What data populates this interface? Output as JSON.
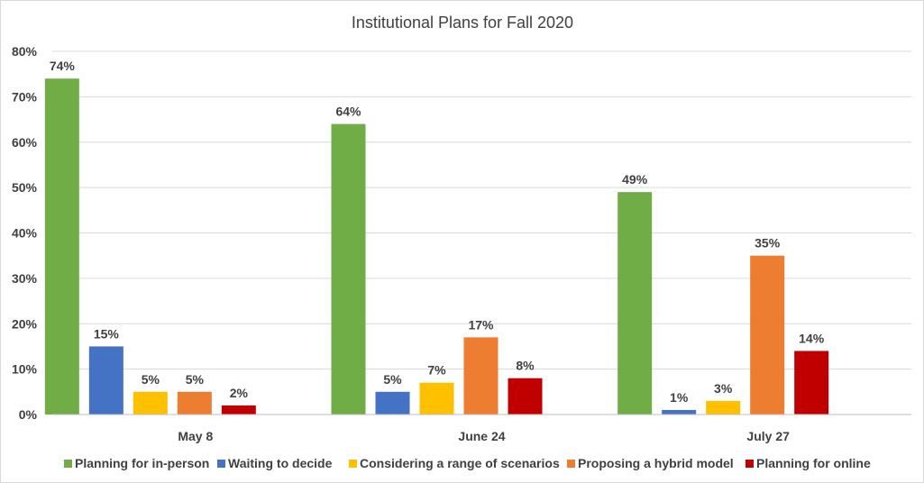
{
  "chart_data": {
    "type": "bar",
    "title": "Institutional Plans for Fall 2020",
    "categories": [
      "May 8",
      "June 24",
      "July 27"
    ],
    "series": [
      {
        "name": "Planning for in-person",
        "color": "#70AD47",
        "values": [
          74,
          64,
          49
        ]
      },
      {
        "name": "Waiting to decide",
        "color": "#4472C4",
        "values": [
          15,
          5,
          1
        ]
      },
      {
        "name": "Considering a range of scenarios",
        "color": "#FFC000",
        "values": [
          5,
          7,
          3
        ]
      },
      {
        "name": "Proposing a hybrid model",
        "color": "#ED7D31",
        "values": [
          5,
          17,
          35
        ]
      },
      {
        "name": "Planning for online",
        "color": "#C00000",
        "values": [
          2,
          8,
          14
        ]
      }
    ],
    "value_format": "percent",
    "ylim": [
      0,
      80
    ],
    "yticks": [
      "0%",
      "10%",
      "20%",
      "30%",
      "40%",
      "50%",
      "60%",
      "70%",
      "80%"
    ],
    "grid": true,
    "legend_position": "bottom",
    "xlabel": "",
    "ylabel": ""
  }
}
